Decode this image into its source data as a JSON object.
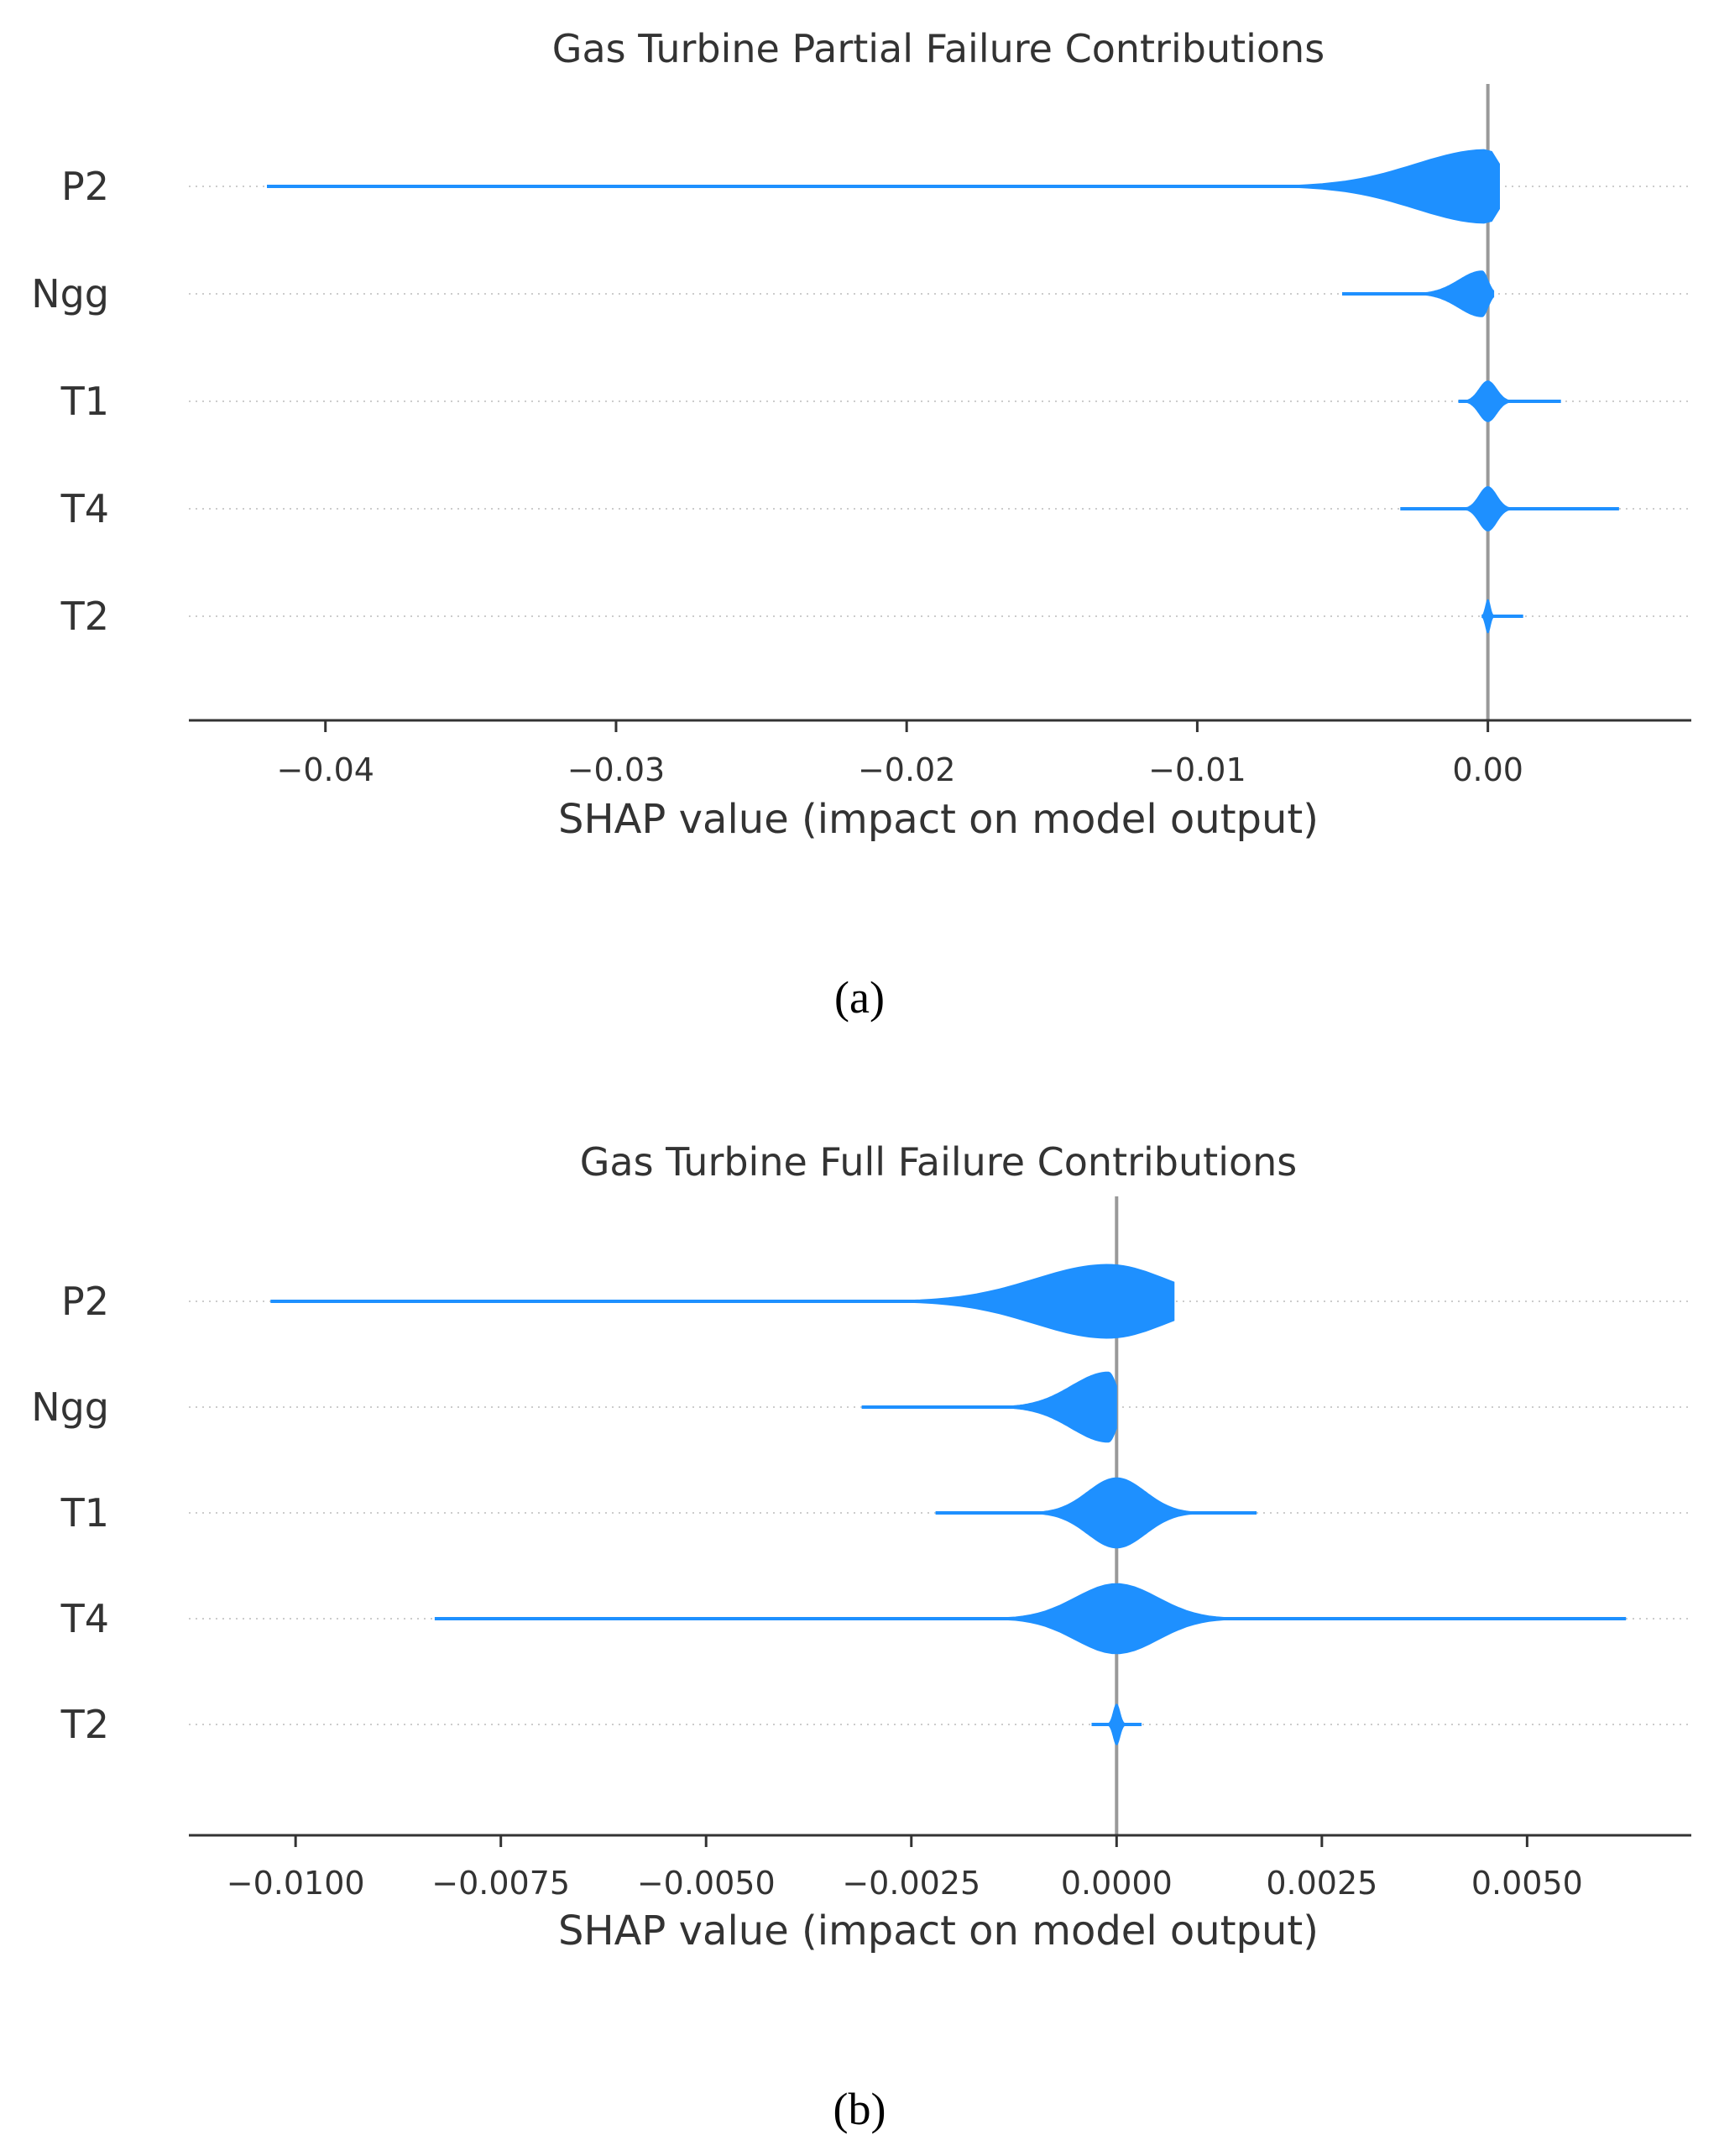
{
  "colors": {
    "violin": "#1E90FF",
    "zero_line": "#999999",
    "grid": "#CCCCCC",
    "axis": "#333333",
    "text": "#333333"
  },
  "chart_data": [
    {
      "type": "violin",
      "title": "Gas Turbine Partial Failure Contributions",
      "xlabel": "SHAP value (impact on model output)",
      "caption": "(a)",
      "xlim": [
        -0.0447,
        0.007
      ],
      "xticks": [
        {
          "value": -0.04,
          "label": "−0.04"
        },
        {
          "value": -0.03,
          "label": "−0.03"
        },
        {
          "value": -0.02,
          "label": "−0.02"
        },
        {
          "value": -0.01,
          "label": "−0.01"
        },
        {
          "value": 0.0,
          "label": "0.00"
        }
      ],
      "features": [
        {
          "name": "P2",
          "min": -0.042,
          "max": 0.0004,
          "peak": 0.0,
          "spread_left": 0.0025,
          "spread_right": 0.0004,
          "relative_width": 1.0
        },
        {
          "name": "Ngg",
          "min": -0.005,
          "max": 0.0002,
          "peak": -0.0002,
          "spread_left": 0.0008,
          "spread_right": 0.0002,
          "relative_width": 0.62
        },
        {
          "name": "T1",
          "min": -0.001,
          "max": 0.0025,
          "peak": 0.0,
          "spread_left": 0.0003,
          "spread_right": 0.0003,
          "relative_width": 0.55
        },
        {
          "name": "T4",
          "min": -0.003,
          "max": 0.0045,
          "peak": 0.0,
          "spread_left": 0.0003,
          "spread_right": 0.0003,
          "relative_width": 0.6
        },
        {
          "name": "T2",
          "min": -0.0002,
          "max": 0.0012,
          "peak": 0.0,
          "spread_left": 8e-05,
          "spread_right": 8e-05,
          "relative_width": 0.45
        }
      ]
    },
    {
      "type": "violin",
      "title": "Gas Turbine Full Failure Contributions",
      "xlabel": "SHAP value (impact on model output)",
      "caption": "(b)",
      "xlim": [
        -0.0113,
        0.007
      ],
      "xticks": [
        {
          "value": -0.01,
          "label": "−0.0100"
        },
        {
          "value": -0.0075,
          "label": "−0.0075"
        },
        {
          "value": -0.005,
          "label": "−0.0050"
        },
        {
          "value": -0.0025,
          "label": "−0.0025"
        },
        {
          "value": 0.0,
          "label": "0.0000"
        },
        {
          "value": 0.0025,
          "label": "0.0025"
        },
        {
          "value": 0.005,
          "label": "0.0050"
        }
      ],
      "features": [
        {
          "name": "P2",
          "min": -0.0103,
          "max": 0.0007,
          "peak": -0.0001,
          "spread_left": 0.0009,
          "spread_right": 0.0007,
          "relative_width": 1.0
        },
        {
          "name": "Ngg",
          "min": -0.0031,
          "max": 0.0,
          "peak": -0.0001,
          "spread_left": 0.00045,
          "spread_right": 0.0001,
          "relative_width": 0.95
        },
        {
          "name": "T1",
          "min": -0.0022,
          "max": 0.0017,
          "peak": 0.0,
          "spread_left": 0.00035,
          "spread_right": 0.00035,
          "relative_width": 0.95
        },
        {
          "name": "T4",
          "min": -0.0083,
          "max": 0.0062,
          "peak": 0.0,
          "spread_left": 0.0005,
          "spread_right": 0.0005,
          "relative_width": 0.95
        },
        {
          "name": "T2",
          "min": -0.0003,
          "max": 0.0003,
          "peak": 0.0,
          "spread_left": 4e-05,
          "spread_right": 4e-05,
          "relative_width": 0.55
        }
      ]
    }
  ]
}
